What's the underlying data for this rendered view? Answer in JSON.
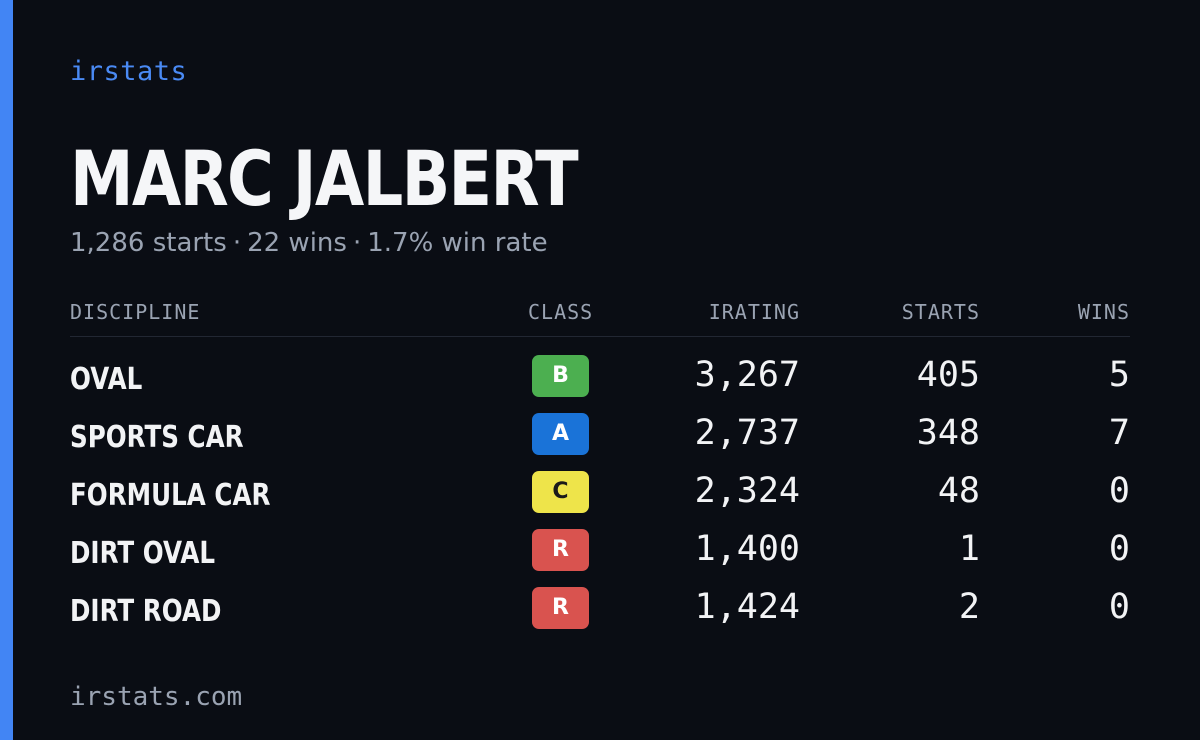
{
  "brand": "irstats",
  "driver": {
    "name": "MARC JALBERT",
    "starts_text": "1,286 starts",
    "wins_text": "22 wins",
    "win_rate_text": "1.7% win rate",
    "separator": "·"
  },
  "table": {
    "headers": {
      "discipline": "DISCIPLINE",
      "class": "CLASS",
      "irating": "IRATING",
      "starts": "STARTS",
      "wins": "WINS"
    },
    "rows": [
      {
        "discipline": "OVAL",
        "class": "B",
        "class_color": "#4caf50",
        "class_text_color": "#ffffff",
        "irating": "3,267",
        "starts": "405",
        "wins": "5"
      },
      {
        "discipline": "SPORTS CAR",
        "class": "A",
        "class_color": "#1a73d8",
        "class_text_color": "#ffffff",
        "irating": "2,737",
        "starts": "348",
        "wins": "7"
      },
      {
        "discipline": "FORMULA CAR",
        "class": "C",
        "class_color": "#eee44a",
        "class_text_color": "#1a1a1a",
        "irating": "2,324",
        "starts": "48",
        "wins": "0"
      },
      {
        "discipline": "DIRT OVAL",
        "class": "R",
        "class_color": "#d9534f",
        "class_text_color": "#ffffff",
        "irating": "1,400",
        "starts": "1",
        "wins": "0"
      },
      {
        "discipline": "DIRT ROAD",
        "class": "R",
        "class_color": "#d9534f",
        "class_text_color": "#ffffff",
        "irating": "1,424",
        "starts": "2",
        "wins": "0"
      }
    ]
  },
  "footer": "irstats.com",
  "colors": {
    "background": "#0a0d14",
    "accent": "#4285f4",
    "muted_text": "#9aa3b2",
    "primary_text": "#f2f3f5"
  }
}
